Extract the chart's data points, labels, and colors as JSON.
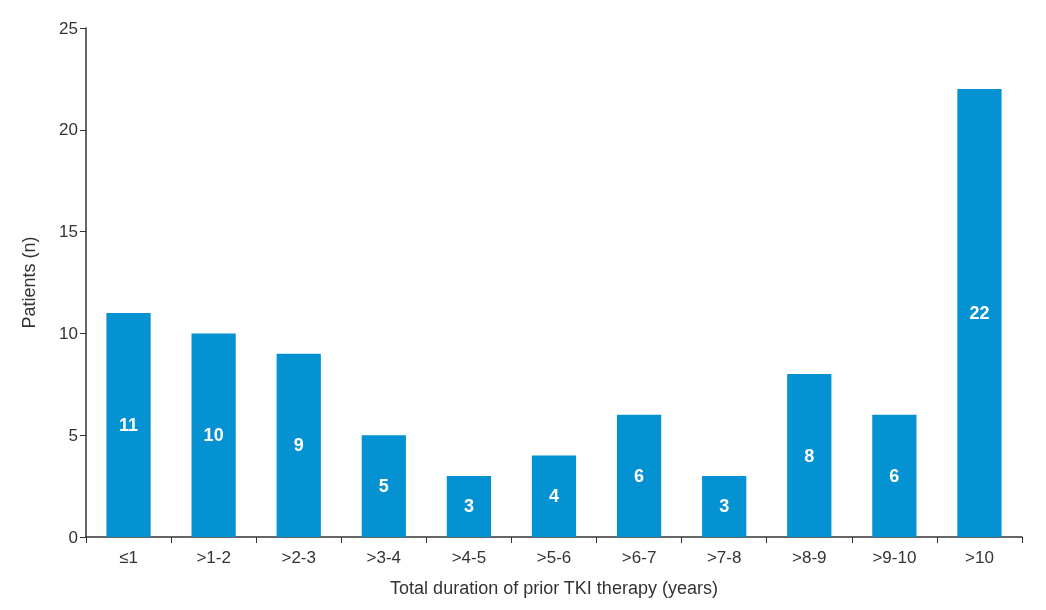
{
  "chart_data": {
    "type": "bar",
    "xlabel": "Total duration of prior TKI therapy (years)",
    "ylabel": "Patients (n)",
    "categories": [
      "≤1",
      ">1-2",
      ">2-3",
      ">3-4",
      ">4-5",
      ">5-6",
      ">6-7",
      ">7-8",
      ">8-9",
      ">9-10",
      ">10"
    ],
    "values": [
      11,
      10,
      9,
      5,
      3,
      4,
      6,
      3,
      8,
      6,
      22
    ],
    "color": "#0492d2",
    "ylim": [
      0,
      25
    ],
    "yticks": [
      0,
      5,
      10,
      15,
      20,
      25
    ],
    "grid": false,
    "data_labels": true
  }
}
